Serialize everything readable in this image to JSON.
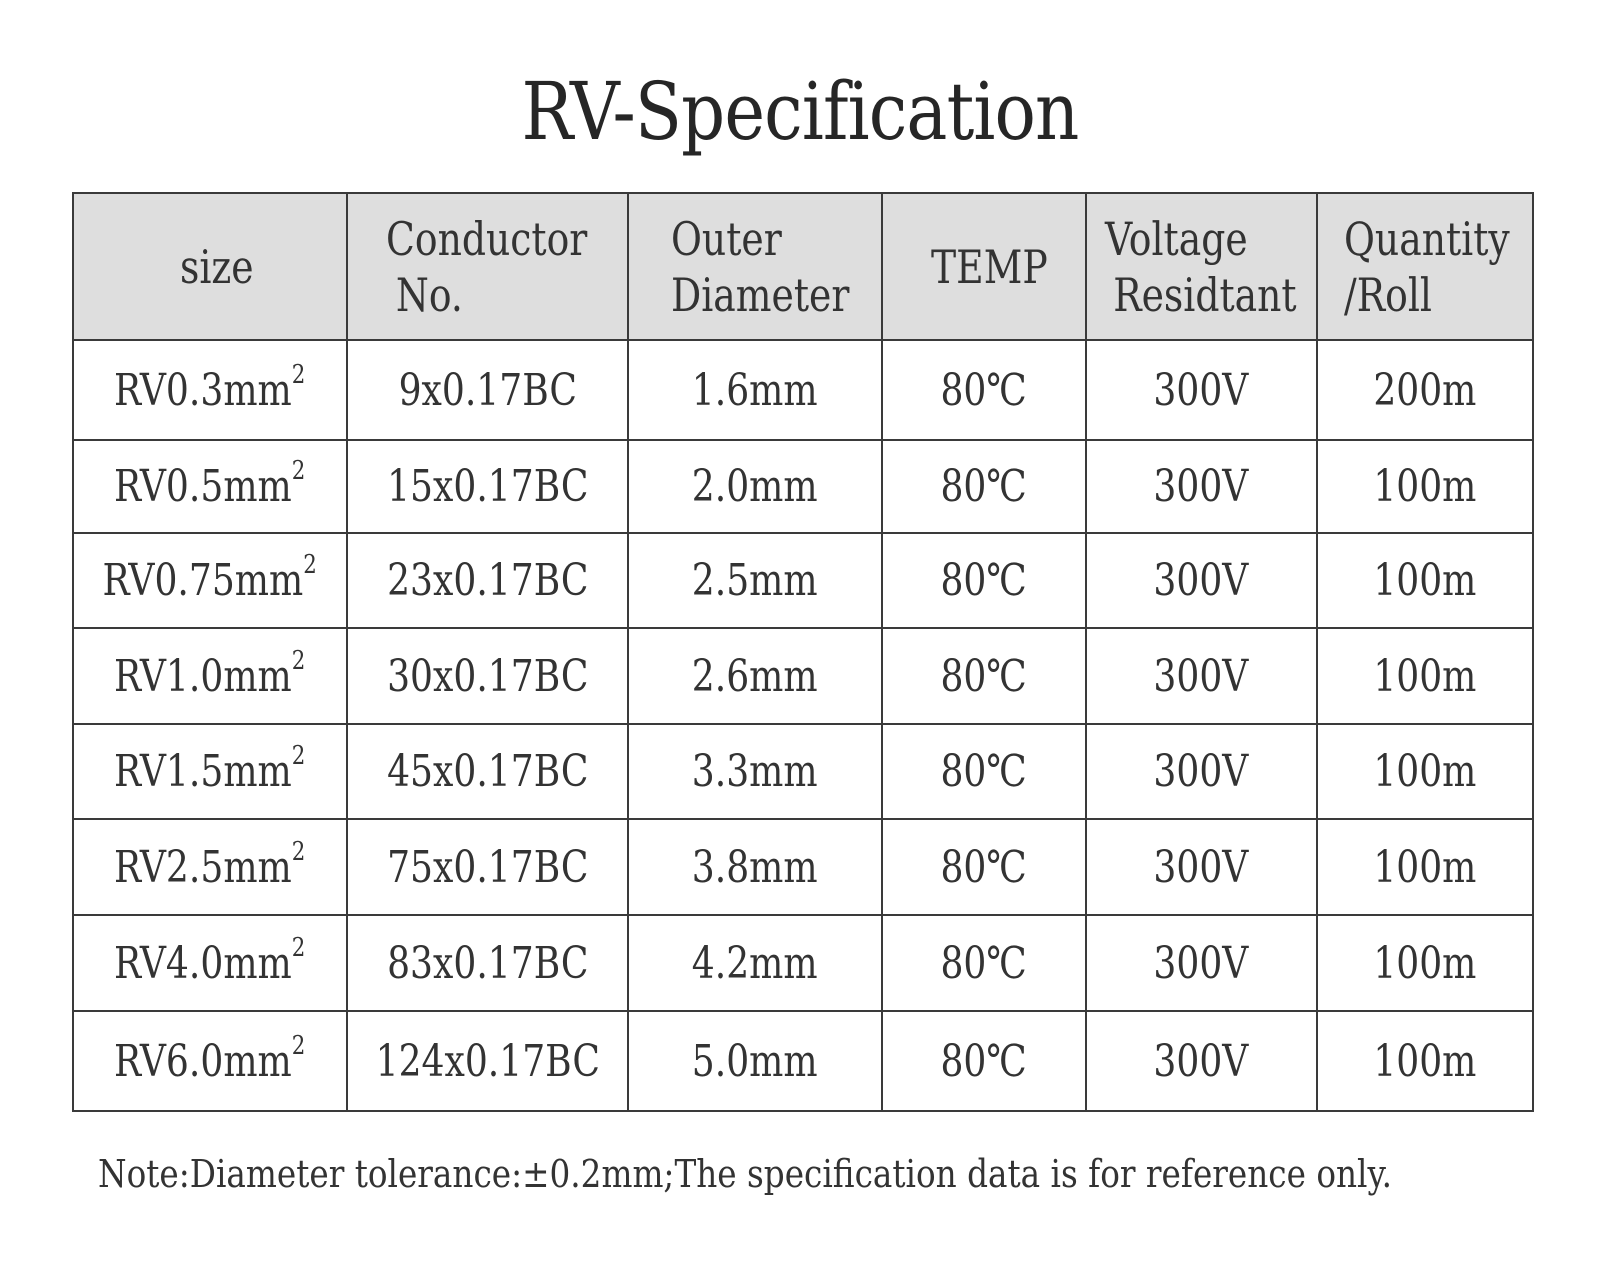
{
  "title": "RV-Specification",
  "table": {
    "headers": [
      {
        "key": "size",
        "line1": "size",
        "line2": ""
      },
      {
        "key": "conductor",
        "line1": "Conductor",
        "line2": "No."
      },
      {
        "key": "outer-diameter",
        "line1": "Outer",
        "line2": "Diameter"
      },
      {
        "key": "temp",
        "line1": "TEMP",
        "line2": ""
      },
      {
        "key": "voltage",
        "line1": "Voltage",
        "line2": "Residtant"
      },
      {
        "key": "quantity",
        "line1": "Quantity",
        "line2": "/Roll"
      }
    ],
    "rows": [
      {
        "size": "RV0.3mm",
        "sup": "2",
        "conductor": "9x0.17BC",
        "diameter": "1.6mm",
        "temp": "80℃",
        "voltage": "300V",
        "quantity": "200m"
      },
      {
        "size": "RV0.5mm",
        "sup": "2",
        "conductor": "15x0.17BC",
        "diameter": "2.0mm",
        "temp": "80℃",
        "voltage": "300V",
        "quantity": "100m"
      },
      {
        "size": "RV0.75mm",
        "sup": "2",
        "conductor": "23x0.17BC",
        "diameter": "2.5mm",
        "temp": "80℃",
        "voltage": "300V",
        "quantity": "100m"
      },
      {
        "size": "RV1.0mm",
        "sup": "2",
        "conductor": "30x0.17BC",
        "diameter": "2.6mm",
        "temp": "80℃",
        "voltage": "300V",
        "quantity": "100m"
      },
      {
        "size": "RV1.5mm",
        "sup": "2",
        "conductor": "45x0.17BC",
        "diameter": "3.3mm",
        "temp": "80℃",
        "voltage": "300V",
        "quantity": "100m"
      },
      {
        "size": "RV2.5mm",
        "sup": "2",
        "conductor": "75x0.17BC",
        "diameter": "3.8mm",
        "temp": "80℃",
        "voltage": "300V",
        "quantity": "100m"
      },
      {
        "size": "RV4.0mm",
        "sup": "2",
        "conductor": "83x0.17BC",
        "diameter": "4.2mm",
        "temp": "80℃",
        "voltage": "300V",
        "quantity": "100m"
      },
      {
        "size": "RV6.0mm",
        "sup": "2",
        "conductor": "124x0.17BC",
        "diameter": "5.0mm",
        "temp": "80℃",
        "voltage": "300V",
        "quantity": "100m"
      }
    ]
  },
  "note": "Note:Diameter tolerance:±0.2mm;The specification data is for reference only."
}
